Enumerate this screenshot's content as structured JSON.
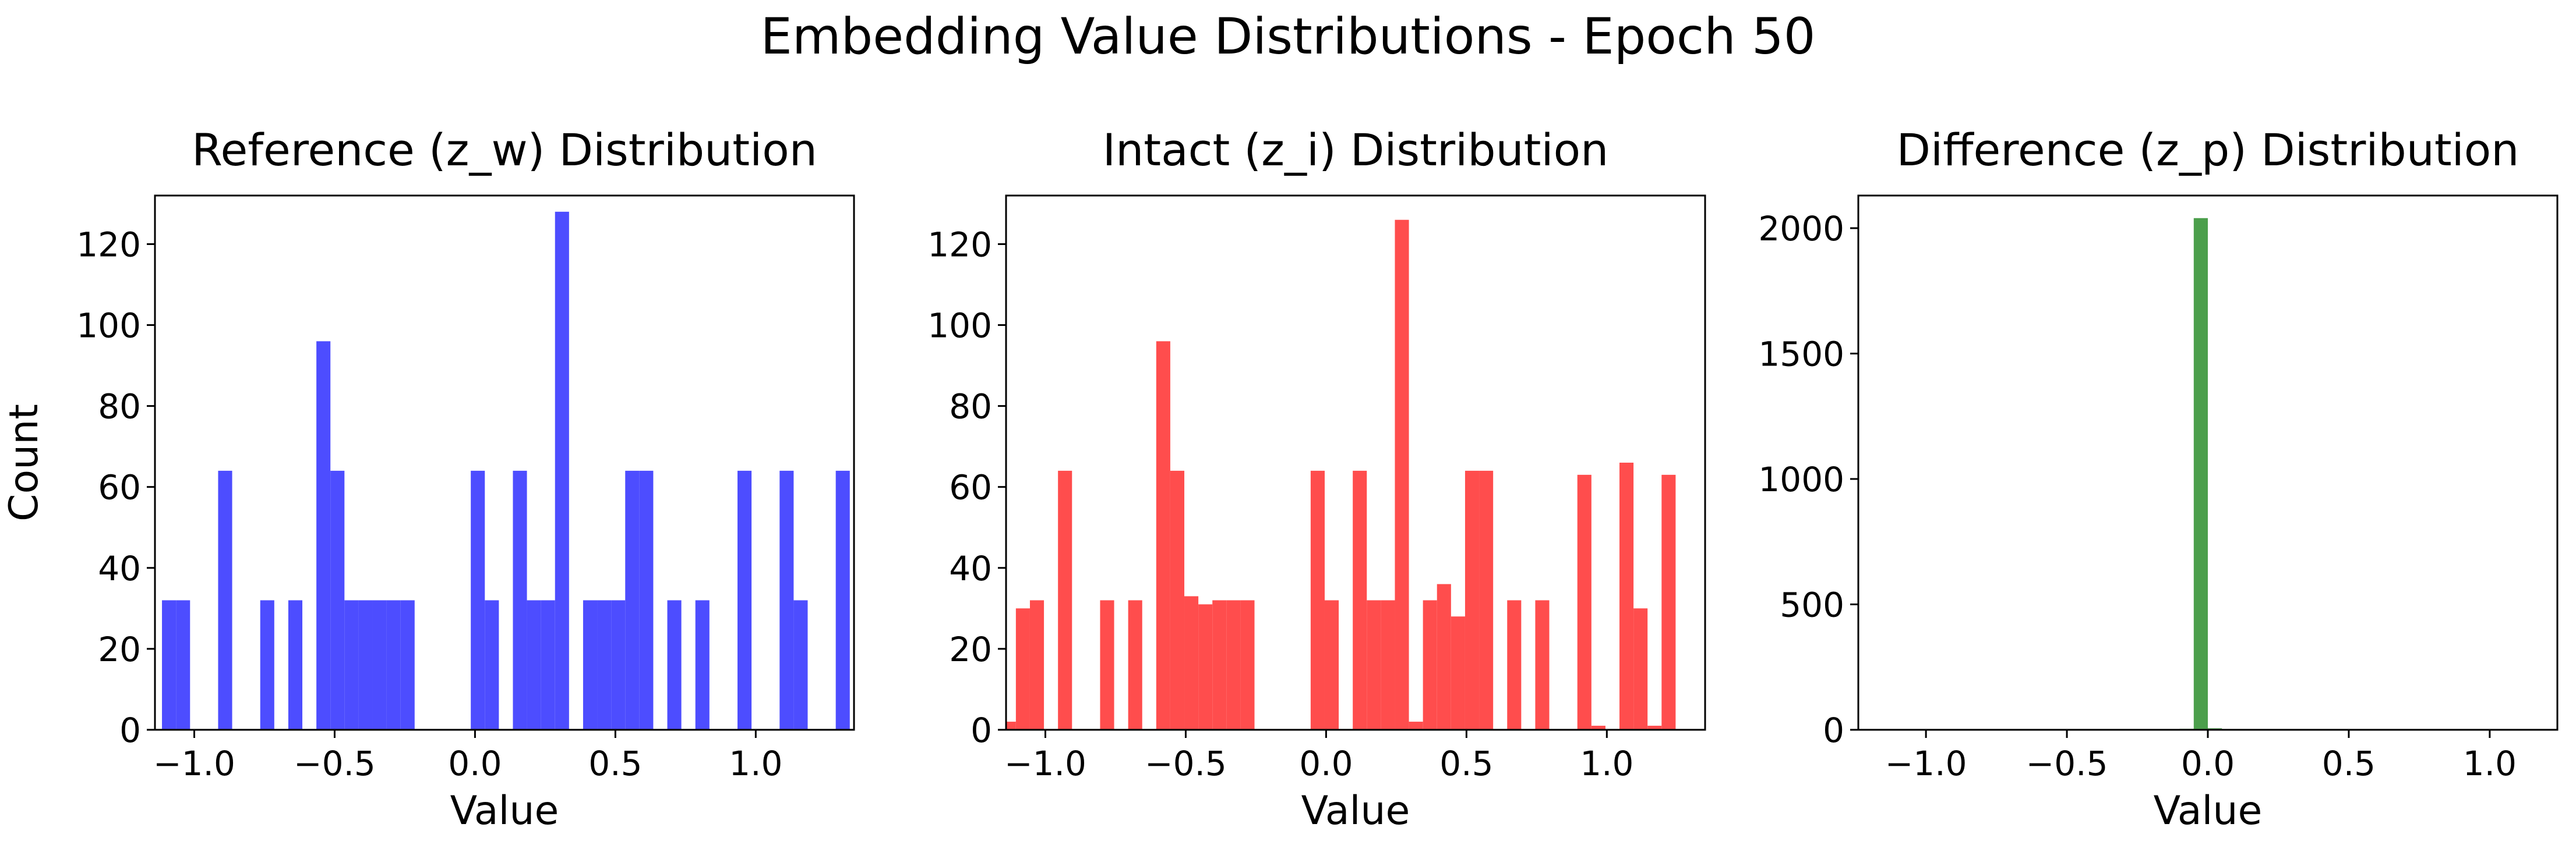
{
  "figure": {
    "suptitle": "Embedding Value Distributions - Epoch 50"
  },
  "chart_data": [
    {
      "type": "bar",
      "title": "Reference (z_w) Distribution",
      "xlabel": "Value",
      "ylabel": "Count",
      "xlim": [
        -1.14,
        1.35
      ],
      "ylim": [
        0,
        132
      ],
      "xticks": [
        -1.0,
        -0.5,
        0.0,
        0.5,
        1.0
      ],
      "xtick_labels": [
        "−1.0",
        "−0.5",
        "0.0",
        "0.5",
        "1.0"
      ],
      "yticks": [
        0,
        20,
        40,
        60,
        80,
        100,
        120
      ],
      "ytick_labels": [
        "0",
        "20",
        "40",
        "60",
        "80",
        "100",
        "120"
      ],
      "bin_width": 0.05,
      "color": "#4d4dff",
      "bins": [
        {
          "x": -1.09,
          "y": 32
        },
        {
          "x": -1.04,
          "y": 32
        },
        {
          "x": -0.89,
          "y": 64
        },
        {
          "x": -0.74,
          "y": 32
        },
        {
          "x": -0.64,
          "y": 32
        },
        {
          "x": -0.54,
          "y": 96
        },
        {
          "x": -0.49,
          "y": 64
        },
        {
          "x": -0.44,
          "y": 32
        },
        {
          "x": -0.39,
          "y": 32
        },
        {
          "x": -0.34,
          "y": 32
        },
        {
          "x": -0.29,
          "y": 32
        },
        {
          "x": -0.24,
          "y": 32
        },
        {
          "x": 0.01,
          "y": 64
        },
        {
          "x": 0.06,
          "y": 32
        },
        {
          "x": 0.16,
          "y": 64
        },
        {
          "x": 0.21,
          "y": 32
        },
        {
          "x": 0.26,
          "y": 32
        },
        {
          "x": 0.31,
          "y": 128
        },
        {
          "x": 0.41,
          "y": 32
        },
        {
          "x": 0.46,
          "y": 32
        },
        {
          "x": 0.51,
          "y": 32
        },
        {
          "x": 0.56,
          "y": 64
        },
        {
          "x": 0.61,
          "y": 64
        },
        {
          "x": 0.71,
          "y": 32
        },
        {
          "x": 0.81,
          "y": 32
        },
        {
          "x": 0.96,
          "y": 64
        },
        {
          "x": 1.11,
          "y": 64
        },
        {
          "x": 1.16,
          "y": 32
        },
        {
          "x": 1.31,
          "y": 64
        }
      ]
    },
    {
      "type": "bar",
      "title": "Intact (z_i) Distribution",
      "xlabel": "Value",
      "ylabel": "",
      "xlim": [
        -1.14,
        1.35
      ],
      "ylim": [
        0,
        132
      ],
      "xticks": [
        -1.0,
        -0.5,
        0.0,
        0.5,
        1.0
      ],
      "xtick_labels": [
        "−1.0",
        "−0.5",
        "0.0",
        "0.5",
        "1.0"
      ],
      "yticks": [
        0,
        20,
        40,
        60,
        80,
        100,
        120
      ],
      "ytick_labels": [
        "0",
        "20",
        "40",
        "60",
        "80",
        "100",
        "120"
      ],
      "bin_width": 0.05,
      "color": "#ff4d4d",
      "bins": [
        {
          "x": -1.13,
          "y": 2
        },
        {
          "x": -1.08,
          "y": 30
        },
        {
          "x": -1.03,
          "y": 32
        },
        {
          "x": -0.93,
          "y": 64
        },
        {
          "x": -0.78,
          "y": 32
        },
        {
          "x": -0.68,
          "y": 32
        },
        {
          "x": -0.58,
          "y": 96
        },
        {
          "x": -0.53,
          "y": 64
        },
        {
          "x": -0.48,
          "y": 33
        },
        {
          "x": -0.43,
          "y": 31
        },
        {
          "x": -0.38,
          "y": 32
        },
        {
          "x": -0.33,
          "y": 32
        },
        {
          "x": -0.28,
          "y": 32
        },
        {
          "x": -0.03,
          "y": 64
        },
        {
          "x": 0.02,
          "y": 32
        },
        {
          "x": 0.12,
          "y": 64
        },
        {
          "x": 0.17,
          "y": 32
        },
        {
          "x": 0.22,
          "y": 32
        },
        {
          "x": 0.27,
          "y": 126
        },
        {
          "x": 0.32,
          "y": 2
        },
        {
          "x": 0.37,
          "y": 32
        },
        {
          "x": 0.42,
          "y": 36
        },
        {
          "x": 0.47,
          "y": 28
        },
        {
          "x": 0.52,
          "y": 64
        },
        {
          "x": 0.57,
          "y": 64
        },
        {
          "x": 0.67,
          "y": 32
        },
        {
          "x": 0.77,
          "y": 32
        },
        {
          "x": 0.92,
          "y": 63
        },
        {
          "x": 0.97,
          "y": 1
        },
        {
          "x": 1.07,
          "y": 66
        },
        {
          "x": 1.12,
          "y": 30
        },
        {
          "x": 1.17,
          "y": 1
        },
        {
          "x": 1.22,
          "y": 63
        }
      ]
    },
    {
      "type": "bar",
      "title": "Difference (z_p) Distribution",
      "xlabel": "Value",
      "ylabel": "",
      "xlim": [
        -1.24,
        1.24
      ],
      "ylim": [
        0,
        2130
      ],
      "xticks": [
        -1.0,
        -0.5,
        0.0,
        0.5,
        1.0
      ],
      "xtick_labels": [
        "−1.0",
        "−0.5",
        "0.0",
        "0.5",
        "1.0"
      ],
      "yticks": [
        0,
        500,
        1000,
        1500,
        2000
      ],
      "ytick_labels": [
        "0",
        "500",
        "1000",
        "1500",
        "2000"
      ],
      "bin_width": 0.05,
      "color": "#4c9f4c",
      "bins": [
        {
          "x": -0.075,
          "y": 4
        },
        {
          "x": -0.025,
          "y": 2040
        },
        {
          "x": 0.025,
          "y": 6
        }
      ]
    }
  ]
}
